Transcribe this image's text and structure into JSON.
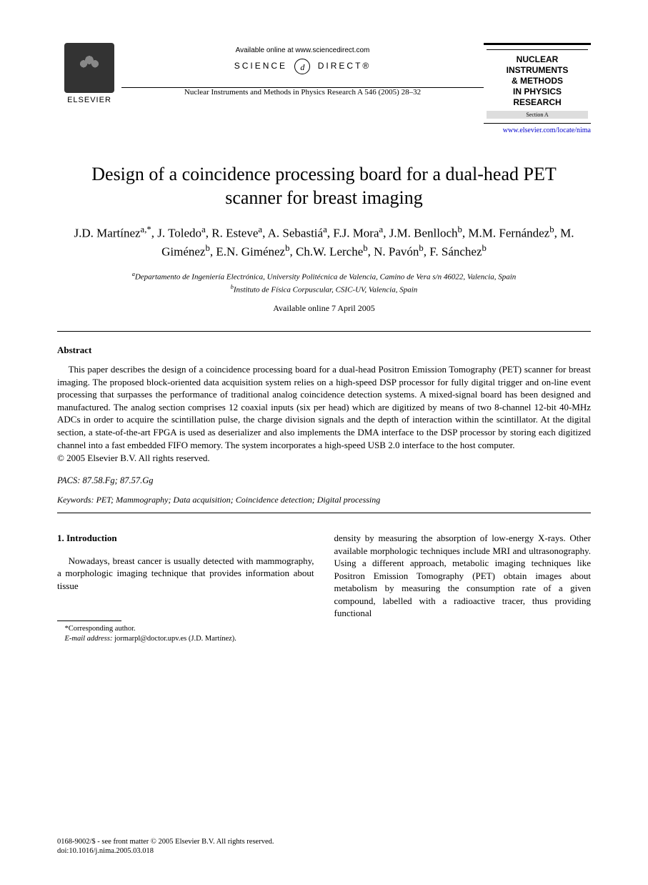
{
  "header": {
    "publisher_logo_text": "ELSEVIER",
    "available_online": "Available online at www.sciencedirect.com",
    "science_direct": "SCIENCE",
    "science_direct_suffix": "DIRECT®",
    "journal_reference": "Nuclear Instruments and Methods in Physics Research A 546 (2005) 28–32",
    "journal_box": {
      "line1": "NUCLEAR",
      "line2": "INSTRUMENTS",
      "line3": "& METHODS",
      "line4": "IN PHYSICS",
      "line5": "RESEARCH",
      "section": "Section A"
    },
    "journal_url": "www.elsevier.com/locate/nima"
  },
  "title": "Design of a coincidence processing board for a dual-head PET scanner for breast imaging",
  "authors_html": "J.D. Martínez<sup>a,*</sup>, J. Toledo<sup>a</sup>, R. Esteve<sup>a</sup>, A. Sebastiá<sup>a</sup>, F.J. Mora<sup>a</sup>, J.M. Benlloch<sup>b</sup>, M.M. Fernández<sup>b</sup>, M. Giménez<sup>b</sup>, E.N. Giménez<sup>b</sup>, Ch.W. Lerche<sup>b</sup>, N. Pavón<sup>b</sup>, F. Sánchez<sup>b</sup>",
  "affiliations": {
    "a": "Departamento de Ingeniería Electrónica, University Politécnica de Valencia, Camino de Vera s/n 46022, Valencia, Spain",
    "b": "Instituto de Física Corpuscular, CSIC-UV, Valencia, Spain"
  },
  "pub_date": "Available online 7 April 2005",
  "abstract": {
    "heading": "Abstract",
    "text": "This paper describes the design of a coincidence processing board for a dual-head Positron Emission Tomography (PET) scanner for breast imaging. The proposed block-oriented data acquisition system relies on a high-speed DSP processor for fully digital trigger and on-line event processing that surpasses the performance of traditional analog coincidence detection systems. A mixed-signal board has been designed and manufactured. The analog section comprises 12 coaxial inputs (six per head) which are digitized by means of two 8-channel 12-bit 40-MHz ADCs in order to acquire the scintillation pulse, the charge division signals and the depth of interaction within the scintillator. At the digital section, a state-of-the-art FPGA is used as deserializer and also implements the DMA interface to the DSP processor by storing each digitized channel into a fast embedded FIFO memory. The system incorporates a high-speed USB 2.0 interface to the host computer.",
    "copyright": "© 2005 Elsevier B.V. All rights reserved."
  },
  "pacs": {
    "label": "PACS:",
    "codes": "87.58.Fg; 87.57.Gg"
  },
  "keywords": {
    "label": "Keywords:",
    "list": "PET; Mammography; Data acquisition; Coincidence detection; Digital processing"
  },
  "body": {
    "section_number": "1.",
    "section_title": "Introduction",
    "col1": "Nowadays, breast cancer is usually detected with mammography, a morphologic imaging technique that provides information about tissue",
    "col2": "density by measuring the absorption of low-energy X-rays. Other available morphologic techniques include MRI and ultrasonography. Using a different approach, metabolic imaging techniques like Positron Emission Tomography (PET) obtain images about metabolism by measuring the consumption rate of a given compound, labelled with a radioactive tracer, thus providing functional"
  },
  "footnote": {
    "corr": "*Corresponding author.",
    "email_label": "E-mail address:",
    "email": "jormarpl@doctor.upv.es (J.D. Martínez)."
  },
  "footer": {
    "line1": "0168-9002/$ - see front matter © 2005 Elsevier B.V. All rights reserved.",
    "line2": "doi:10.1016/j.nima.2005.03.018"
  },
  "colors": {
    "text": "#000000",
    "background": "#ffffff",
    "link": "#0000cc"
  }
}
